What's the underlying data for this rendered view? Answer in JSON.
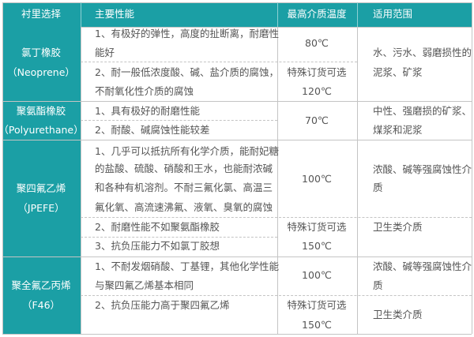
{
  "colors": {
    "header_bg": "#1b9fa5",
    "border": "#c4c4c4",
    "text": "#555555"
  },
  "header": [
    "衬里选择",
    "主要性能",
    "最高介质温度",
    "适用范围"
  ],
  "rows": [
    {
      "lining": [
        "氯丁橡胶",
        "（Neoprene）"
      ],
      "performance": [
        [
          "1、有极好的弹性，高度的扯断离，耐磨性",
          "能好"
        ],
        [
          "2、耐一般低浓度酸、碱、盐介质的腐蚀，",
          "不耐氧化性介质的腐蚀"
        ]
      ],
      "temperature": [
        "80℃",
        "特殊订货可选",
        "120℃"
      ],
      "scope": [
        "水、污水、弱磨损性的",
        "泥浆、矿浆"
      ]
    },
    {
      "lining": [
        "聚氨酯橡胶",
        "（Polyurethane）"
      ],
      "performance": [
        [
          "1、具有极好的耐磨性能"
        ],
        [
          "2、耐酸、碱腐蚀性能较差"
        ]
      ],
      "temperature": [
        "70℃"
      ],
      "scope": [
        "中性、强磨损的矿浆、",
        "煤浆和泥浆"
      ]
    },
    {
      "lining": [
        "聚四氟乙烯",
        "（JPEFE）"
      ],
      "performance": [
        [
          "1、几乎可以抵抗所有化学介质，能耐妃糖",
          "的盐酸、硫酸、硝酸和王水，也能耐浓碱",
          "和各种有机溶剂。不耐三氟化氯、高温三",
          "氟化氧、高流速沸氟、液氧、臭氧的腐蚀"
        ],
        [
          "2、耐磨性能不如聚氨酯橡胶"
        ],
        [
          "3、抗负压能力不如氯丁胶想"
        ]
      ],
      "temperature": [
        "100℃",
        "特殊订货可选",
        "150℃"
      ],
      "scope": [
        "浓酸、碱等强腐蚀性介",
        "质",
        "卫生类介质"
      ]
    },
    {
      "lining": [
        "聚全氟乙丙烯",
        "（F46）"
      ],
      "performance": [
        [
          "1、不耐发烟硝酸、丁基锂，其他化学性能",
          "与聚四氟乙烯基本相同"
        ],
        [
          "2、抗负压能力高于聚四氟乙烯"
        ]
      ],
      "temperature": [
        "100℃",
        "特殊订货可选",
        "150℃"
      ],
      "scope": [
        "浓酸、碱等强腐蚀性介",
        "质",
        "卫生类介质"
      ]
    }
  ]
}
